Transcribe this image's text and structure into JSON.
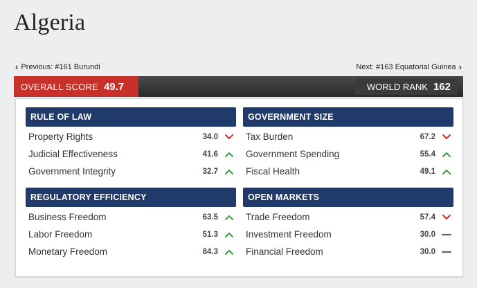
{
  "page": {
    "title": "Algeria"
  },
  "nav": {
    "previous_label": "Previous: #161 Burundi",
    "next_label": "Next: #163 Equatorial Guinea"
  },
  "scores": {
    "overall_label": "OVERALL SCORE",
    "overall_value": "49.7",
    "rank_label": "WORLD RANK",
    "rank_value": "162"
  },
  "colors": {
    "overall_bg": "#c8302a",
    "header_bg": "#1f3a6b",
    "down": "#c8302a",
    "up": "#3a9a3a",
    "flat": "#666666"
  },
  "sections": [
    {
      "title": "RULE OF LAW",
      "items": [
        {
          "name": "Property Rights",
          "score": "34.0",
          "trend": "down"
        },
        {
          "name": "Judicial Effectiveness",
          "score": "41.6",
          "trend": "up"
        },
        {
          "name": "Government Integrity",
          "score": "32.7",
          "trend": "up"
        }
      ]
    },
    {
      "title": "GOVERNMENT SIZE",
      "items": [
        {
          "name": "Tax Burden",
          "score": "67.2",
          "trend": "down"
        },
        {
          "name": "Government Spending",
          "score": "55.4",
          "trend": "up"
        },
        {
          "name": "Fiscal Health",
          "score": "49.1",
          "trend": "up"
        }
      ]
    },
    {
      "title": "REGULATORY EFFICIENCY",
      "items": [
        {
          "name": "Business Freedom",
          "score": "63.5",
          "trend": "up"
        },
        {
          "name": "Labor Freedom",
          "score": "51.3",
          "trend": "up"
        },
        {
          "name": "Monetary Freedom",
          "score": "84.3",
          "trend": "up"
        }
      ]
    },
    {
      "title": "OPEN MARKETS",
      "items": [
        {
          "name": "Trade Freedom",
          "score": "57.4",
          "trend": "down"
        },
        {
          "name": "Investment Freedom",
          "score": "30.0",
          "trend": "flat"
        },
        {
          "name": "Financial Freedom",
          "score": "30.0",
          "trend": "flat"
        }
      ]
    }
  ]
}
